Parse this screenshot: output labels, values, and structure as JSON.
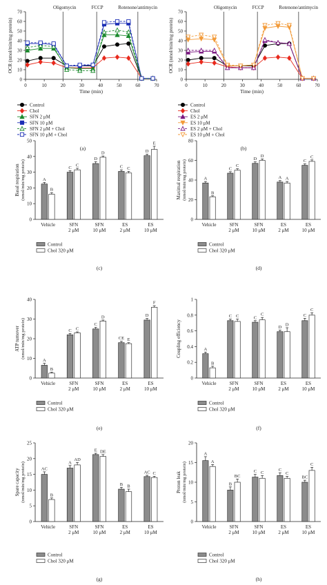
{
  "chart_data": [
    {
      "type": "line",
      "panel_label": "(a)",
      "xlabel": "Time (min)",
      "ylabel": "OCR (nmol/min/mg protein)",
      "xlim": [
        0,
        70
      ],
      "ylim": [
        0,
        70
      ],
      "xticks": [
        0,
        10,
        20,
        30,
        40,
        50,
        60,
        70
      ],
      "yticks": [
        0,
        10,
        20,
        30,
        40,
        50,
        60,
        70
      ],
      "phase_labels": [
        "Oligomycin",
        "FCCP",
        "Rotenone/antimycin"
      ],
      "phase_times": [
        20,
        38,
        60
      ],
      "x": [
        1,
        8,
        15,
        22,
        29,
        36,
        42,
        49,
        55,
        62,
        68
      ],
      "series": [
        {
          "name": "Control",
          "color": "#000000",
          "marker": "circle",
          "fill": true,
          "dash": false,
          "values": [
            19,
            22,
            22,
            14,
            14,
            14,
            34,
            36,
            37,
            1,
            1
          ]
        },
        {
          "name": "Chol",
          "color": "#e8291c",
          "marker": "diamond",
          "fill": true,
          "dash": false,
          "values": [
            15,
            18,
            17,
            12,
            12,
            12,
            22,
            23,
            22,
            1,
            1
          ]
        },
        {
          "name": "SFN 2 μM",
          "color": "#1b8a2d",
          "marker": "triangle",
          "fill": true,
          "dash": false,
          "values": [
            30,
            32,
            32,
            12,
            11,
            11,
            46,
            46,
            45,
            1,
            1
          ]
        },
        {
          "name": "SFN 10 μM",
          "color": "#1c2fb5",
          "marker": "square",
          "fill": true,
          "dash": false,
          "values": [
            37,
            37,
            36,
            14,
            14,
            15,
            57,
            58,
            58,
            1,
            1
          ]
        },
        {
          "name": "SFN 2 μM + Chol",
          "color": "#1b8a2d",
          "marker": "triangle",
          "fill": false,
          "dash": true,
          "values": [
            33,
            35,
            34,
            10,
            9,
            9,
            49,
            51,
            49,
            1,
            1
          ]
        },
        {
          "name": "SFN 10 μM + Chol",
          "color": "#1c2fb5",
          "marker": "square",
          "fill": false,
          "dash": true,
          "values": [
            38,
            38,
            37,
            14,
            15,
            15,
            59,
            60,
            60,
            1,
            1
          ]
        }
      ]
    },
    {
      "type": "line",
      "panel_label": "(b)",
      "xlabel": "Time (min)",
      "ylabel": "OCR (nmol/min/mg protein)",
      "xlim": [
        0,
        70
      ],
      "ylim": [
        0,
        70
      ],
      "xticks": [
        0,
        10,
        20,
        30,
        40,
        50,
        60,
        70
      ],
      "yticks": [
        0,
        10,
        20,
        30,
        40,
        50,
        60,
        70
      ],
      "phase_labels": [
        "Oligomycin",
        "FCCP",
        "Rotenone/antimycin"
      ],
      "phase_times": [
        20,
        38,
        60
      ],
      "x": [
        1,
        8,
        15,
        22,
        29,
        36,
        42,
        49,
        55,
        62,
        68
      ],
      "series": [
        {
          "name": "Control",
          "color": "#000000",
          "marker": "circle",
          "fill": true,
          "dash": false,
          "values": [
            20,
            22,
            22,
            14,
            14,
            14,
            35,
            37,
            37,
            1,
            1
          ]
        },
        {
          "name": "Chol",
          "color": "#e8291c",
          "marker": "diamond",
          "fill": true,
          "dash": false,
          "values": [
            16,
            18,
            17,
            13,
            12,
            12,
            22,
            23,
            22,
            1,
            1
          ]
        },
        {
          "name": "ES 2 μM",
          "color": "#7a1680",
          "marker": "triangle",
          "fill": true,
          "dash": false,
          "values": [
            28,
            29,
            29,
            12,
            12,
            12,
            40,
            38,
            37,
            1,
            1
          ]
        },
        {
          "name": "ES 10 μM",
          "color": "#f29a38",
          "marker": "triangle-down",
          "fill": true,
          "dash": false,
          "values": [
            41,
            42,
            41,
            14,
            14,
            15,
            53,
            55,
            54,
            1,
            1
          ]
        },
        {
          "name": "ES 2 μM + Chol",
          "color": "#7a1680",
          "marker": "triangle",
          "fill": false,
          "dash": true,
          "values": [
            30,
            30,
            30,
            12,
            12,
            12,
            41,
            38,
            37,
            1,
            1
          ]
        },
        {
          "name": "ES 10 μM + Chol",
          "color": "#f29a38",
          "marker": "triangle-down",
          "fill": false,
          "dash": true,
          "values": [
            44,
            46,
            44,
            15,
            14,
            15,
            56,
            58,
            56,
            1,
            1
          ]
        }
      ]
    },
    {
      "type": "bar",
      "panel_label": "(c)",
      "ylabel": "Basal respiration",
      "ylabel2": "(nmol/min/mg protein)",
      "ylim": [
        0,
        50
      ],
      "yticks": [
        0,
        10,
        20,
        30,
        40,
        50
      ],
      "categories": [
        "Vehicle",
        "SFN|2 μM",
        "SFN|10 μM",
        "ES|2 μM",
        "ES|10 μM"
      ],
      "series": [
        {
          "name": "Control",
          "values": [
            22.5,
            30,
            35.5,
            30.5,
            40.5
          ],
          "letters": [
            "A",
            "C",
            "D",
            "C",
            "D"
          ]
        },
        {
          "name": "Chol 320 μM",
          "values": [
            16,
            31.5,
            39.5,
            29.5,
            44.5
          ],
          "letters": [
            "B",
            "C",
            "D",
            "C",
            "E"
          ]
        }
      ],
      "errors": [
        [
          1,
          1,
          1.2,
          1,
          1
        ],
        [
          1,
          1,
          0.8,
          1,
          2
        ]
      ]
    },
    {
      "type": "bar",
      "panel_label": "(d)",
      "ylabel": "Maximal respiration",
      "ylabel2": "(nmol/min/mg protein)",
      "ylim": [
        0,
        80
      ],
      "yticks": [
        0,
        20,
        40,
        60,
        80
      ],
      "categories": [
        "Vehicle",
        "SFN|2 μM",
        "SFN|10 μM",
        "ES|2 μM",
        "ES|10 μM"
      ],
      "series": [
        {
          "name": "Control",
          "values": [
            37,
            47,
            57,
            38,
            55
          ],
          "letters": [
            "A",
            "C",
            "D",
            "A",
            "C"
          ]
        },
        {
          "name": "Chol 320 μM",
          "values": [
            23,
            50,
            60,
            37,
            59
          ],
          "letters": [
            "B",
            "C",
            "D",
            "A",
            "C"
          ]
        }
      ],
      "errors": [
        [
          1.5,
          1.5,
          1.5,
          1.5,
          1.5
        ],
        [
          1,
          1.5,
          1.5,
          1.5,
          1.5
        ]
      ]
    },
    {
      "type": "bar",
      "panel_label": "(e)",
      "ylabel": "ATP turnover",
      "ylabel2": "(nmol/min/mg protein)",
      "ylim": [
        0,
        40
      ],
      "yticks": [
        0,
        10,
        20,
        30,
        40
      ],
      "categories": [
        "Vehicle",
        "SFN|2 μM",
        "SFN|10 μM",
        "ES|2 μM",
        "ES|10 μM"
      ],
      "series": [
        {
          "name": "Control",
          "values": [
            6.5,
            22,
            25,
            18,
            29.5
          ],
          "letters": [
            "A",
            "C",
            "C",
            "CE",
            "D"
          ]
        },
        {
          "name": "Chol 320 μM",
          "values": [
            2.5,
            23,
            29,
            17.5,
            36
          ],
          "letters": [
            "B",
            "C",
            "D",
            "E",
            "F"
          ]
        }
      ],
      "errors": [
        [
          1,
          0.7,
          0.8,
          0.7,
          0.8
        ],
        [
          0.5,
          0.5,
          0.5,
          0.5,
          0.8
        ]
      ]
    },
    {
      "type": "bar",
      "panel_label": "(f)",
      "ylabel": "Coupling efficiency",
      "ylabel2": "",
      "ylim": [
        0,
        1.0
      ],
      "yticks": [
        0,
        0.2,
        0.4,
        0.6,
        0.8,
        1.0
      ],
      "categories": [
        "Vehicle",
        "SFN|2 μM",
        "SFN|10 μM",
        "ES|2 μM",
        "ES|10 μM"
      ],
      "series": [
        {
          "name": "Control",
          "values": [
            0.31,
            0.73,
            0.71,
            0.59,
            0.73
          ],
          "letters": [
            "A",
            "C",
            "C",
            "D",
            "C"
          ]
        },
        {
          "name": "Chol 320 μM",
          "values": [
            0.13,
            0.72,
            0.74,
            0.59,
            0.8
          ],
          "letters": [
            "B",
            "C",
            "C",
            "D",
            "C"
          ]
        }
      ],
      "errors": [
        [
          0.02,
          0.02,
          0.02,
          0.02,
          0.03
        ],
        [
          0.02,
          0.03,
          0.03,
          0.05,
          0.03
        ]
      ]
    },
    {
      "type": "bar",
      "panel_label": "(g)",
      "ylabel": "Spare capacity",
      "ylabel2": "(nmol/min/mg protein)",
      "ylim": [
        0,
        25
      ],
      "yticks": [
        0,
        5,
        10,
        15,
        20,
        25
      ],
      "categories": [
        "Vehicle",
        "SFN|2 μM",
        "SFN|10 μM",
        "ES|2 μM",
        "ES|10 μM"
      ],
      "series": [
        {
          "name": "Control",
          "values": [
            15,
            17,
            21.3,
            10.3,
            14.3
          ],
          "letters": [
            "AC",
            "A",
            "E",
            "B",
            "AC"
          ]
        },
        {
          "name": "Chol 320 μM",
          "values": [
            7,
            18,
            20.7,
            9.5,
            14
          ],
          "letters": [
            "B",
            "AD",
            "DE",
            "B",
            "C"
          ]
        }
      ],
      "errors": [
        [
          0.8,
          0.8,
          0.4,
          0.6,
          0.4
        ],
        [
          0.5,
          0.8,
          0.6,
          0.8,
          0.4
        ]
      ]
    },
    {
      "type": "bar",
      "panel_label": "(h)",
      "ylabel": "Proton leak",
      "ylabel2": "(nmol/min/mg protein)",
      "ylim": [
        0,
        20
      ],
      "yticks": [
        0,
        5,
        10,
        15,
        20
      ],
      "categories": [
        "Vehicle",
        "SFN|2 μM",
        "SFN|10 μM",
        "ES|2 μM",
        "ES|10 μM"
      ],
      "series": [
        {
          "name": "Control",
          "values": [
            15.5,
            8,
            11.3,
            11.7,
            10
          ],
          "letters": [
            "A",
            "B",
            "C",
            "C",
            "BC"
          ]
        },
        {
          "name": "Chol 320 μM",
          "values": [
            14,
            10,
            11,
            11,
            13
          ],
          "letters": [
            "A",
            "BC",
            "C",
            "C",
            "C"
          ]
        }
      ],
      "errors": [
        [
          1,
          0.8,
          0.7,
          0.7,
          0.5
        ],
        [
          0.5,
          0.8,
          0.7,
          0.5,
          0.8
        ]
      ]
    }
  ],
  "colors": {
    "control_bar": "#8c8c8c",
    "chol_bar": "#ffffff",
    "axis": "#222222"
  }
}
